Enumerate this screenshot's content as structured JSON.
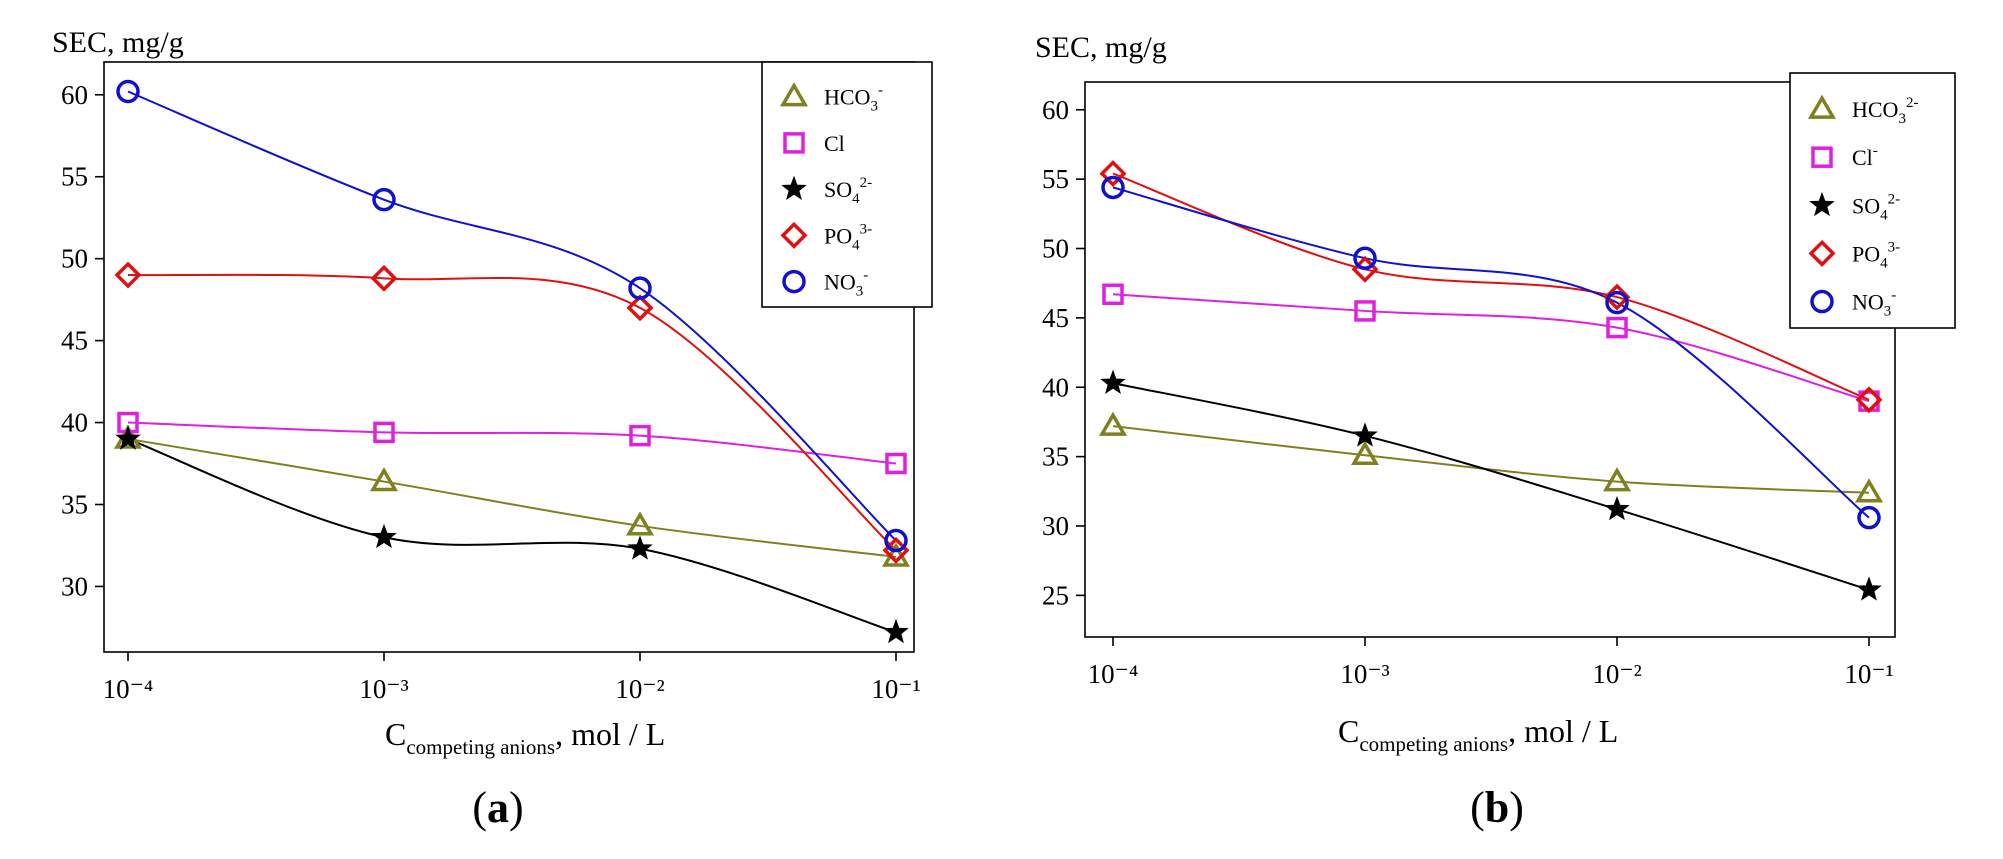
{
  "chart_data": [
    {
      "type": "line",
      "panel_label": "(a)",
      "ylabel": "SEC, mg/g",
      "xlabel": {
        "main": "C",
        "sub": "competing anions",
        "rest": ", mol / L"
      },
      "x_categories": [
        "10⁻⁴",
        "10⁻³",
        "10⁻²",
        "10⁻¹"
      ],
      "ylim": [
        26,
        62
      ],
      "yticks": [
        30,
        35,
        40,
        45,
        50,
        55,
        60
      ],
      "legend_position": "top-right",
      "series": [
        {
          "name": "HCO3-",
          "label": "HCO",
          "sub": "3",
          "sup": "-",
          "marker": "triangle",
          "color": "#808020",
          "values": [
            39.0,
            36.4,
            33.7,
            31.8
          ]
        },
        {
          "name": "Cl",
          "label": "Cl",
          "sub": "",
          "sup": "",
          "marker": "square",
          "color": "#e020e0",
          "values": [
            40.0,
            39.4,
            39.2,
            37.5
          ]
        },
        {
          "name": "SO42-",
          "label": "SO",
          "sub": "4",
          "sup": "2-",
          "marker": "star",
          "color": "#000000",
          "values": [
            39.0,
            33.0,
            32.3,
            27.2
          ]
        },
        {
          "name": "PO43-",
          "label": "PO",
          "sub": "4",
          "sup": "3-",
          "marker": "diamond",
          "color": "#e01010",
          "values": [
            49.0,
            48.8,
            47.0,
            32.2
          ]
        },
        {
          "name": "NO3-",
          "label": "NO",
          "sub": "3",
          "sup": "-",
          "marker": "circle",
          "color": "#1010d0",
          "values": [
            60.2,
            53.6,
            48.2,
            32.8
          ]
        }
      ]
    },
    {
      "type": "line",
      "panel_label": "(b)",
      "ylabel": "SEC, mg/g",
      "xlabel": {
        "main": "C",
        "sub": "competing anions",
        "rest": ", mol / L"
      },
      "x_categories": [
        "10⁻⁴",
        "10⁻³",
        "10⁻²",
        "10⁻¹"
      ],
      "ylim": [
        22,
        62
      ],
      "yticks": [
        25,
        30,
        35,
        40,
        45,
        50,
        55,
        60
      ],
      "legend_position": "top-right",
      "series": [
        {
          "name": "HCO32-",
          "label": "HCO",
          "sub": "3",
          "sup": "2-",
          "marker": "triangle",
          "color": "#808020",
          "values": [
            37.2,
            35.1,
            33.2,
            32.4
          ]
        },
        {
          "name": "Cl-",
          "label": "Cl",
          "sub": "",
          "sup": "-",
          "marker": "square",
          "color": "#e020e0",
          "values": [
            46.7,
            45.5,
            44.3,
            39.0
          ]
        },
        {
          "name": "SO42-",
          "label": "SO",
          "sub": "4",
          "sup": "2-",
          "marker": "star",
          "color": "#000000",
          "values": [
            40.3,
            36.5,
            31.2,
            25.4
          ]
        },
        {
          "name": "PO43-",
          "label": "PO",
          "sub": "4",
          "sup": "3-",
          "marker": "diamond",
          "color": "#e01010",
          "values": [
            55.4,
            48.5,
            46.5,
            39.1
          ]
        },
        {
          "name": "NO3-",
          "label": "NO",
          "sub": "3",
          "sup": "-",
          "marker": "circle",
          "color": "#1010d0",
          "values": [
            54.4,
            49.3,
            46.1,
            30.6
          ]
        }
      ]
    }
  ]
}
